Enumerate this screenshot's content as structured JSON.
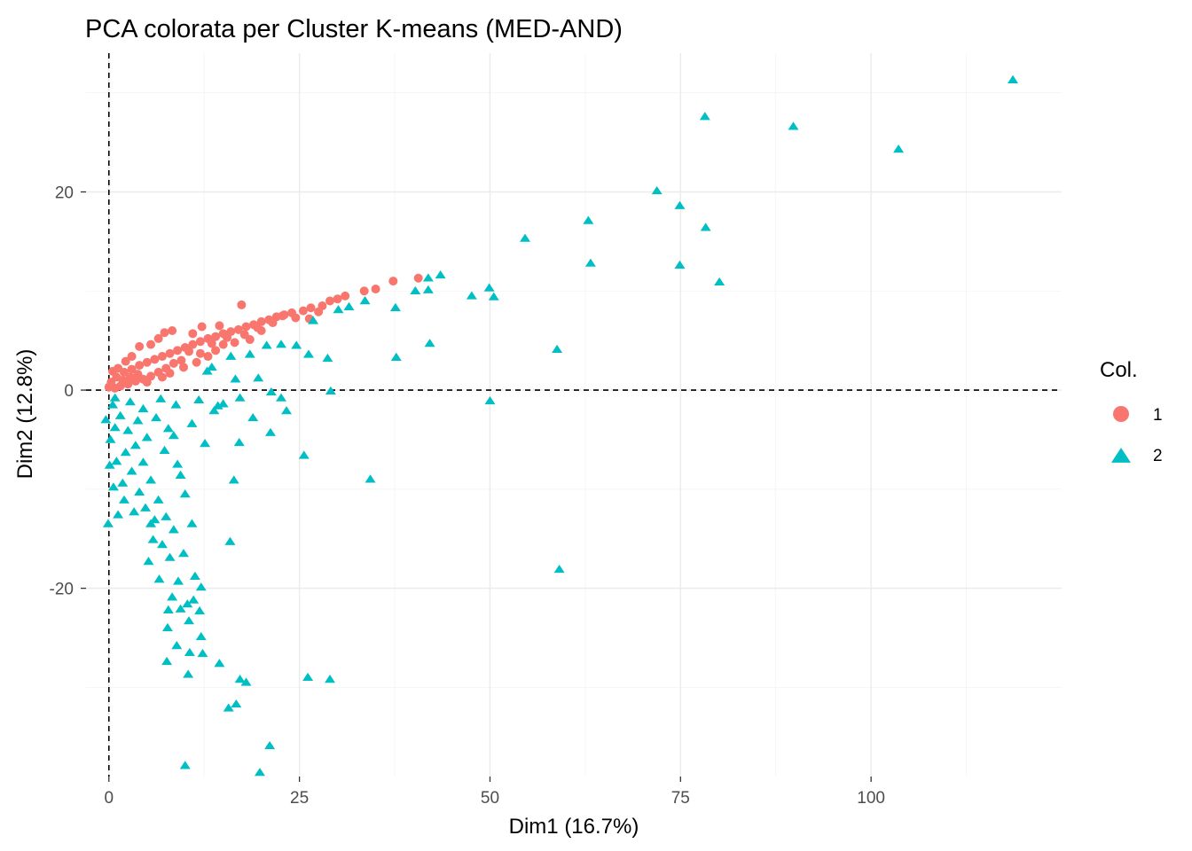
{
  "chart_data": {
    "type": "scatter",
    "title": "PCA colorata per Cluster K-means (MED-AND)",
    "xlabel": "Dim1 (16.7%)",
    "ylabel": "Dim2 (12.8%)",
    "xlim": [
      -3,
      125
    ],
    "ylim": [
      -39,
      34
    ],
    "x_ticks": [
      0,
      25,
      50,
      75,
      100
    ],
    "x_tick_labels": [
      "0",
      "25",
      "50",
      "75",
      "100"
    ],
    "y_ticks": [
      -20,
      0,
      20
    ],
    "y_tick_labels": [
      "-20",
      "0",
      "20"
    ],
    "x_minor_ticks": [
      12.5,
      37.5,
      62.5,
      87.5,
      112.5
    ],
    "y_minor_ticks": [
      -30,
      -10,
      10,
      30
    ],
    "grid": true,
    "reference_lines": {
      "x": 0,
      "y": 0
    },
    "legend": {
      "title": "Col.",
      "position": "right",
      "entries": [
        {
          "label": "1",
          "shape": "circle",
          "color": "#F8766D"
        },
        {
          "label": "2",
          "shape": "triangle",
          "color": "#00BFC4"
        }
      ]
    },
    "series": [
      {
        "name": "1",
        "shape": "circle",
        "color": "#F8766D",
        "points": [
          [
            40.6,
            11.3
          ],
          [
            37.3,
            11.0
          ],
          [
            35.0,
            10.2
          ],
          [
            33.5,
            10.0
          ],
          [
            31.0,
            9.5
          ],
          [
            30.0,
            9.2
          ],
          [
            29.0,
            9.0
          ],
          [
            28.0,
            8.5
          ],
          [
            26.5,
            8.3
          ],
          [
            25.5,
            8.0
          ],
          [
            24.0,
            7.8
          ],
          [
            23.0,
            7.6
          ],
          [
            22.0,
            7.4
          ],
          [
            21.0,
            7.1
          ],
          [
            20.0,
            6.9
          ],
          [
            19.0,
            6.6
          ],
          [
            18.0,
            6.4
          ],
          [
            17.0,
            6.1
          ],
          [
            16.0,
            5.9
          ],
          [
            15.0,
            5.7
          ],
          [
            14.0,
            5.4
          ],
          [
            13.0,
            5.2
          ],
          [
            12.0,
            4.9
          ],
          [
            11.0,
            4.6
          ],
          [
            10.0,
            4.3
          ],
          [
            9.0,
            4.0
          ],
          [
            8.0,
            3.7
          ],
          [
            7.0,
            3.4
          ],
          [
            6.0,
            3.1
          ],
          [
            5.0,
            2.8
          ],
          [
            4.0,
            2.5
          ],
          [
            3.0,
            2.1
          ],
          [
            2.0,
            1.8
          ],
          [
            1.0,
            1.3
          ],
          [
            0.3,
            0.8
          ],
          [
            0.0,
            0.3
          ],
          [
            17.4,
            8.6
          ],
          [
            12.2,
            6.4
          ],
          [
            11.0,
            5.7
          ],
          [
            8.3,
            6.0
          ],
          [
            7.3,
            5.8
          ],
          [
            6.5,
            5.2
          ],
          [
            5.5,
            4.6
          ],
          [
            4.0,
            4.4
          ],
          [
            22.8,
            7.5
          ],
          [
            26.3,
            7.2
          ],
          [
            14.5,
            6.5
          ],
          [
            20.0,
            6.0
          ],
          [
            18.5,
            5.1
          ],
          [
            16.5,
            4.8
          ],
          [
            15.0,
            4.6
          ],
          [
            13.5,
            4.7
          ],
          [
            12.0,
            3.7
          ],
          [
            10.5,
            3.9
          ],
          [
            9.5,
            3.0
          ],
          [
            8.5,
            2.7
          ],
          [
            7.5,
            2.2
          ],
          [
            6.5,
            1.8
          ],
          [
            5.5,
            1.4
          ],
          [
            4.5,
            1.1
          ],
          [
            3.5,
            0.9
          ],
          [
            2.5,
            0.6
          ],
          [
            1.5,
            0.4
          ],
          [
            0.8,
            0.2
          ],
          [
            3.0,
            3.4
          ],
          [
            2.2,
            2.9
          ],
          [
            1.2,
            2.2
          ],
          [
            0.5,
            1.9
          ],
          [
            9.8,
            2.3
          ],
          [
            11.5,
            2.8
          ],
          [
            13.0,
            3.4
          ],
          [
            14.0,
            4.0
          ],
          [
            15.5,
            5.3
          ],
          [
            17.8,
            5.6
          ],
          [
            19.5,
            6.3
          ],
          [
            21.5,
            6.8
          ],
          [
            24.5,
            7.3
          ],
          [
            27.5,
            7.9
          ],
          [
            7.0,
            1.3
          ],
          [
            8.0,
            1.7
          ],
          [
            5.0,
            0.8
          ],
          [
            3.8,
            1.6
          ],
          [
            2.8,
            1.3
          ],
          [
            1.8,
            1.0
          ]
        ]
      },
      {
        "name": "2",
        "shape": "triangle",
        "color": "#00BFC4",
        "points": [
          [
            118.6,
            31.3
          ],
          [
            78.2,
            27.6
          ],
          [
            89.8,
            26.6
          ],
          [
            103.6,
            24.3
          ],
          [
            71.9,
            20.1
          ],
          [
            74.9,
            18.6
          ],
          [
            62.9,
            17.1
          ],
          [
            54.6,
            15.3
          ],
          [
            78.3,
            16.4
          ],
          [
            63.2,
            12.8
          ],
          [
            74.9,
            12.6
          ],
          [
            80.1,
            10.9
          ],
          [
            43.5,
            11.6
          ],
          [
            41.9,
            11.3
          ],
          [
            41.9,
            10.1
          ],
          [
            40.2,
            10.0
          ],
          [
            49.9,
            10.3
          ],
          [
            50.5,
            9.4
          ],
          [
            47.6,
            9.5
          ],
          [
            33.6,
            9.0
          ],
          [
            31.5,
            8.4
          ],
          [
            37.6,
            8.3
          ],
          [
            30.1,
            8.1
          ],
          [
            26.8,
            7.0
          ],
          [
            42.1,
            4.7
          ],
          [
            58.8,
            4.1
          ],
          [
            37.7,
            3.3
          ],
          [
            22.6,
            4.6
          ],
          [
            20.7,
            4.5
          ],
          [
            24.6,
            4.5
          ],
          [
            28.7,
            3.2
          ],
          [
            26.2,
            3.6
          ],
          [
            18.5,
            3.6
          ],
          [
            16.0,
            3.4
          ],
          [
            13.5,
            2.3
          ],
          [
            12.9,
            1.9
          ],
          [
            16.6,
            1.1
          ],
          [
            19.6,
            1.2
          ],
          [
            29.1,
            -0.1
          ],
          [
            50.0,
            -1.1
          ],
          [
            22.6,
            -0.8
          ],
          [
            23.3,
            -2.1
          ],
          [
            21.3,
            -0.2
          ],
          [
            17.2,
            -0.8
          ],
          [
            14.3,
            -1.6
          ],
          [
            18.9,
            -2.8
          ],
          [
            21.2,
            -4.3
          ],
          [
            15.0,
            -1.4
          ],
          [
            13.8,
            -2.1
          ],
          [
            25.6,
            -6.6
          ],
          [
            34.3,
            -9.0
          ],
          [
            16.4,
            -9.1
          ],
          [
            17.1,
            -5.3
          ],
          [
            12.6,
            -5.4
          ],
          [
            8.5,
            -4.6
          ],
          [
            10.9,
            -3.4
          ],
          [
            7.3,
            -6.1
          ],
          [
            9.4,
            -8.6
          ],
          [
            59.1,
            -18.1
          ],
          [
            15.9,
            -15.3
          ],
          [
            10.9,
            -13.5
          ],
          [
            9.8,
            -16.5
          ],
          [
            11.3,
            -18.8
          ],
          [
            12.1,
            -19.9
          ],
          [
            11.1,
            -21.2
          ],
          [
            8.3,
            -20.9
          ],
          [
            10.3,
            -21.6
          ],
          [
            7.8,
            -22.2
          ],
          [
            9.4,
            -22.1
          ],
          [
            11.9,
            -22.3
          ],
          [
            7.7,
            -24.0
          ],
          [
            12.1,
            -24.9
          ],
          [
            8.9,
            -25.8
          ],
          [
            10.6,
            -26.5
          ],
          [
            7.6,
            -27.4
          ],
          [
            14.5,
            -27.6
          ],
          [
            10.4,
            -28.7
          ],
          [
            17.2,
            -29.2
          ],
          [
            26.1,
            -29.0
          ],
          [
            29.0,
            -29.2
          ],
          [
            18.0,
            -29.5
          ],
          [
            16.7,
            -31.7
          ],
          [
            15.7,
            -32.1
          ],
          [
            21.1,
            -35.9
          ],
          [
            10.0,
            -37.9
          ],
          [
            19.8,
            -38.6
          ],
          [
            -0.1,
            -13.5
          ],
          [
            5.5,
            -13.5
          ],
          [
            5.2,
            -17.3
          ],
          [
            2.0,
            -11.1
          ],
          [
            1.0,
            -7.2
          ],
          [
            0.2,
            -5.0
          ],
          [
            -0.4,
            -3.0
          ],
          [
            0.5,
            -1.5
          ],
          [
            1.5,
            -2.6
          ],
          [
            2.5,
            -4.1
          ],
          [
            3.5,
            -5.6
          ],
          [
            4.5,
            -7.3
          ],
          [
            5.5,
            -9.1
          ],
          [
            6.5,
            -11.1
          ],
          [
            7.5,
            -12.8
          ],
          [
            8.5,
            -14.1
          ],
          [
            1.8,
            -9.4
          ],
          [
            3.0,
            -8.2
          ],
          [
            4.0,
            -10.3
          ],
          [
            6.0,
            -13.1
          ],
          [
            7.0,
            -15.6
          ],
          [
            8.0,
            -16.9
          ],
          [
            0.8,
            -3.8
          ],
          [
            2.2,
            -6.3
          ],
          [
            3.8,
            -3.1
          ],
          [
            5.0,
            -4.8
          ],
          [
            6.2,
            -2.8
          ],
          [
            7.8,
            -3.9
          ],
          [
            9.0,
            -7.5
          ],
          [
            10.0,
            -10.5
          ],
          [
            2.8,
            -1.2
          ],
          [
            4.5,
            -1.9
          ],
          [
            6.8,
            -0.9
          ],
          [
            8.8,
            -1.5
          ],
          [
            11.8,
            -1.0
          ],
          [
            1.2,
            -12.6
          ],
          [
            0.6,
            -9.8
          ],
          [
            0.1,
            -7.6
          ],
          [
            0.8,
            -0.8
          ],
          [
            3.3,
            -12.3
          ],
          [
            5.8,
            -15.1
          ],
          [
            4.8,
            -11.9
          ],
          [
            6.6,
            -19.1
          ],
          [
            9.1,
            -19.3
          ],
          [
            10.5,
            -23.3
          ],
          [
            12.3,
            -26.6
          ]
        ]
      }
    ]
  }
}
